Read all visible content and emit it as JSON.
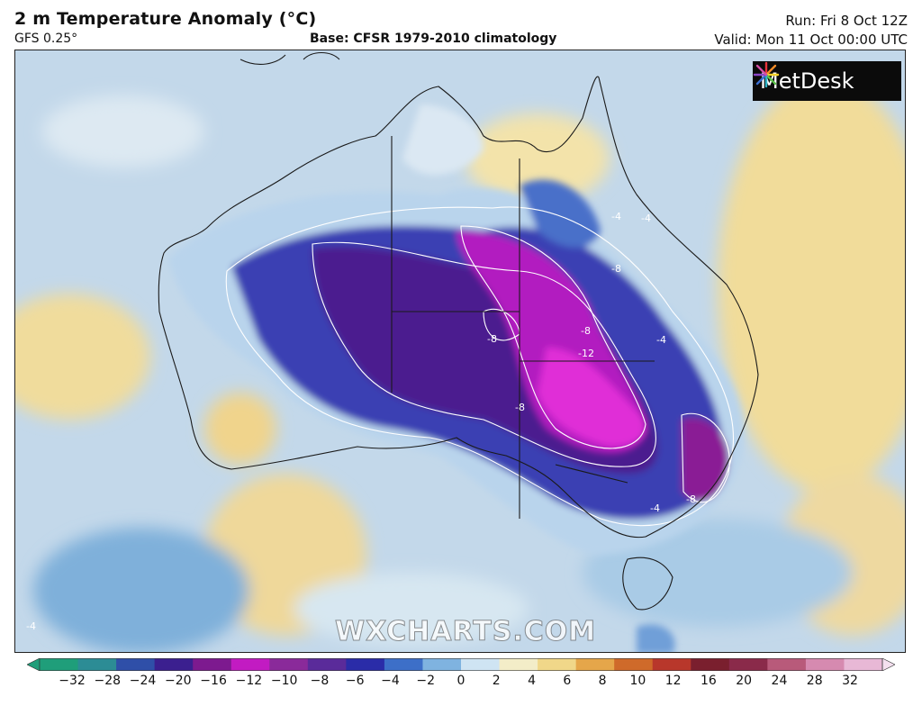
{
  "header": {
    "title": "2 m Temperature Anomaly (°C)",
    "model": "GFS 0.25°",
    "base": "Base: CFSR 1979-2010 climatology",
    "run": "Run: Fri 8 Oct 12Z",
    "valid": "Valid: Mon 11 Oct 00:00 UTC"
  },
  "branding": {
    "logo_text": "MetDesk",
    "watermark": "WXCHARTS.COM"
  },
  "contour_labels": [
    "-4",
    "-4",
    "-8",
    "-8",
    "-8",
    "-12",
    "-8",
    "-4",
    "-8",
    "-4",
    "-4"
  ],
  "colorbar": {
    "ticks": [
      "−32",
      "−28",
      "−24",
      "−20",
      "−16",
      "−12",
      "−10",
      "−8",
      "−6",
      "−4",
      "−2",
      "0",
      "2",
      "4",
      "6",
      "8",
      "10",
      "12",
      "16",
      "20",
      "24",
      "28",
      "32"
    ],
    "colors": [
      "#1f9e7a",
      "#2c8c95",
      "#2f4fa8",
      "#3b1f8f",
      "#7d1a8f",
      "#c21bc2",
      "#8a2a9a",
      "#5a2b9a",
      "#2a2ca8",
      "#3d6fc8",
      "#7fb3e0",
      "#cfe4f3",
      "#f3edc8",
      "#f0d789",
      "#e5a64a",
      "#cf6a2a",
      "#b8372b",
      "#7a1f2e",
      "#8a2a4a",
      "#b85a7a",
      "#d68ab0",
      "#e8b8d6",
      "#f4e0ef"
    ]
  }
}
